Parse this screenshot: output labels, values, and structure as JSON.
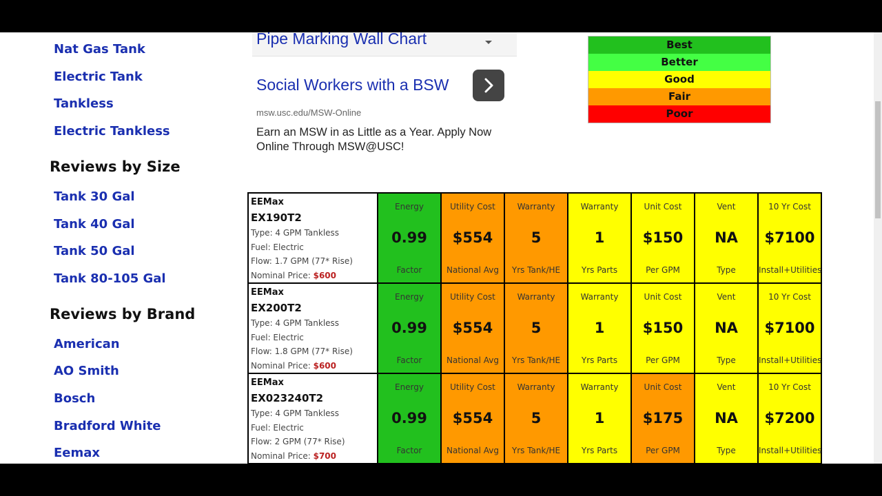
{
  "sidebar": {
    "type_links": [
      "Nat Gas Tank",
      "Electric Tank",
      "Tankless",
      "Electric Tankless"
    ],
    "size_heading": "Reviews by Size",
    "size_links": [
      "Tank 30 Gal",
      "Tank 40 Gal",
      "Tank 50 Gal",
      "Tank 80-105 Gal"
    ],
    "brand_heading": "Reviews by Brand",
    "brand_links": [
      "American",
      "AO Smith",
      "Bosch",
      "Bradford White",
      "Eemax"
    ]
  },
  "ad": {
    "select_text": "Pipe Marking Wall Chart",
    "title": "Social Workers with a BSW",
    "url": "msw.usc.edu/MSW-Online",
    "description": "Earn an MSW in as Little as a Year. Apply Now Online Through MSW@USC!",
    "arrow_icon": "chevron-right-icon"
  },
  "legend": [
    {
      "label": "Best",
      "color": "#22c01e"
    },
    {
      "label": "Better",
      "color": "#44ff44"
    },
    {
      "label": "Good",
      "color": "#ffff00"
    },
    {
      "label": "Fair",
      "color": "#ff9900"
    },
    {
      "label": "Poor",
      "color": "#ff0000"
    }
  ],
  "table": {
    "rows": [
      {
        "brand": "EEMax",
        "model": "EX190T2",
        "type": "Type: 4 GPM Tankless",
        "fuel": "Fuel: Electric",
        "flow": "Flow: 1.7 GPM (77* Rise)",
        "price_label": "Nominal Price:",
        "price": "$600",
        "cells": [
          {
            "label": "Energy",
            "value": "0.99",
            "sub": "Factor",
            "color": "g"
          },
          {
            "label": "Utility Cost",
            "value": "$554",
            "sub": "National Avg",
            "color": "o"
          },
          {
            "label": "Warranty",
            "value": "5",
            "sub": "Yrs Tank/HE",
            "color": "o"
          },
          {
            "label": "Warranty",
            "value": "1",
            "sub": "Yrs Parts",
            "color": "y"
          },
          {
            "label": "Unit Cost",
            "value": "$150",
            "sub": "Per GPM",
            "color": "y"
          },
          {
            "label": "Vent",
            "value": "NA",
            "sub": "Type",
            "color": "y"
          },
          {
            "label": "10 Yr Cost",
            "value": "$7100",
            "sub": "Install+Utilities",
            "color": "y"
          }
        ]
      },
      {
        "brand": "EEMax",
        "model": "EX200T2",
        "type": "Type: 4 GPM Tankless",
        "fuel": "Fuel: Electric",
        "flow": "Flow: 1.8 GPM (77* Rise)",
        "price_label": "Nominal Price:",
        "price": "$600",
        "cells": [
          {
            "label": "Energy",
            "value": "0.99",
            "sub": "Factor",
            "color": "g"
          },
          {
            "label": "Utility Cost",
            "value": "$554",
            "sub": "National Avg",
            "color": "o"
          },
          {
            "label": "Warranty",
            "value": "5",
            "sub": "Yrs Tank/HE",
            "color": "o"
          },
          {
            "label": "Warranty",
            "value": "1",
            "sub": "Yrs Parts",
            "color": "y"
          },
          {
            "label": "Unit Cost",
            "value": "$150",
            "sub": "Per GPM",
            "color": "y"
          },
          {
            "label": "Vent",
            "value": "NA",
            "sub": "Type",
            "color": "y"
          },
          {
            "label": "10 Yr Cost",
            "value": "$7100",
            "sub": "Install+Utilities",
            "color": "y"
          }
        ]
      },
      {
        "brand": "EEMax",
        "model": "EX023240T2",
        "type": "Type: 4 GPM Tankless",
        "fuel": "Fuel: Electric",
        "flow": "Flow: 2 GPM (77* Rise)",
        "price_label": "Nominal Price:",
        "price": "$700",
        "cells": [
          {
            "label": "Energy",
            "value": "0.99",
            "sub": "Factor",
            "color": "g"
          },
          {
            "label": "Utility Cost",
            "value": "$554",
            "sub": "National Avg",
            "color": "o"
          },
          {
            "label": "Warranty",
            "value": "5",
            "sub": "Yrs Tank/HE",
            "color": "o"
          },
          {
            "label": "Warranty",
            "value": "1",
            "sub": "Yrs Parts",
            "color": "y"
          },
          {
            "label": "Unit Cost",
            "value": "$175",
            "sub": "Per GPM",
            "color": "o"
          },
          {
            "label": "Vent",
            "value": "NA",
            "sub": "Type",
            "color": "y"
          },
          {
            "label": "10 Yr Cost",
            "value": "$7200",
            "sub": "Install+Utilities",
            "color": "y"
          }
        ]
      }
    ]
  }
}
